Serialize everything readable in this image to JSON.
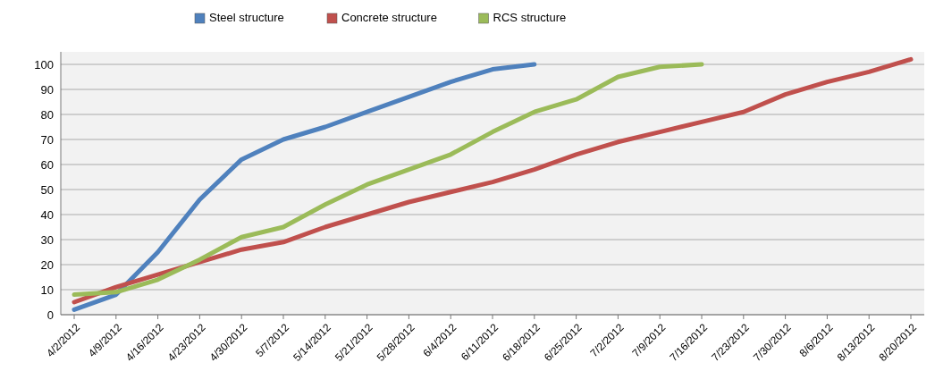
{
  "chart_data": {
    "type": "line",
    "categories": [
      "4/2/2012",
      "4/9/2012",
      "4/16/2012",
      "4/23/2012",
      "4/30/2012",
      "5/7/2012",
      "5/14/2012",
      "5/21/2012",
      "5/28/2012",
      "6/4/2012",
      "6/11/2012",
      "6/18/2012",
      "6/25/2012",
      "7/2/2012",
      "7/9/2012",
      "7/16/2012",
      "7/23/2012",
      "7/30/2012",
      "8/6/2012",
      "8/13/2012",
      "8/20/2012"
    ],
    "series": [
      {
        "name": "Steel structure",
        "color": "#4f81bd",
        "values": [
          2,
          8,
          25,
          46,
          62,
          70,
          75,
          81,
          87,
          93,
          98,
          100,
          null,
          null,
          null,
          null,
          null,
          null,
          null,
          null,
          null
        ]
      },
      {
        "name": "Concrete structure",
        "color": "#c0504d",
        "values": [
          5,
          11,
          16,
          21,
          26,
          29,
          35,
          40,
          45,
          49,
          53,
          58,
          64,
          69,
          73,
          77,
          81,
          88,
          93,
          97,
          102
        ]
      },
      {
        "name": "RCS structure",
        "color": "#9bbb59",
        "values": [
          8,
          9,
          14,
          22,
          31,
          35,
          44,
          52,
          58,
          64,
          73,
          81,
          86,
          95,
          99,
          100,
          null,
          null,
          null,
          null,
          null
        ]
      }
    ],
    "ylim": [
      0,
      105
    ],
    "yticks": [
      0,
      10,
      20,
      30,
      40,
      50,
      60,
      70,
      80,
      90,
      100
    ],
    "grid": "y",
    "legend": "top",
    "marker": "none",
    "line_style": "solid"
  }
}
